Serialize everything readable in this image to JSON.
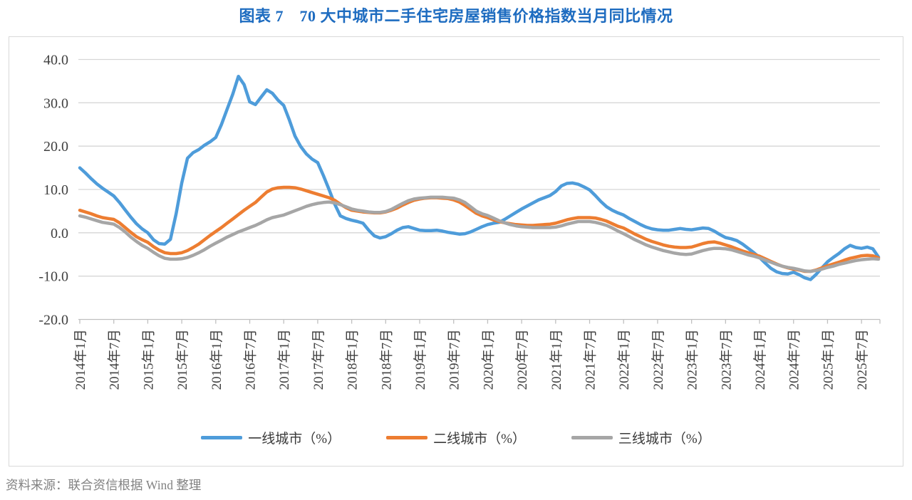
{
  "title": "图表 7　70 大中城市二手住宅房屋销售价格指数当月同比情况",
  "source_note": "资料来源：联合资信根据 Wind 整理",
  "chart_data": {
    "type": "line",
    "title": "图表 7　70 大中城市二手住宅房屋销售价格指数当月同比情况",
    "xlabel": "",
    "ylabel": "",
    "ylim": [
      -20.0,
      40.0
    ],
    "y_step": 10.0,
    "grid": true,
    "legend_position": "bottom",
    "x_monthly_range": {
      "start": "2014年1月",
      "end": "2025年10月"
    },
    "y_tick_labels": [
      "40.0",
      "30.0",
      "20.0",
      "10.0",
      "0.0",
      "-10.0",
      "-20.0"
    ],
    "x_tick_labels": [
      "2014年1月",
      "2014年7月",
      "2015年1月",
      "2015年7月",
      "2016年1月",
      "2016年7月",
      "2017年1月",
      "2017年7月",
      "2018年1月",
      "2018年7月",
      "2019年1月",
      "2019年7月",
      "2020年1月",
      "2020年7月",
      "2021年1月",
      "2021年7月",
      "2022年1月",
      "2022年7月",
      "2023年1月",
      "2023年7月",
      "2024年1月",
      "2024年7月",
      "2025年1月",
      "2025年7月"
    ],
    "series": [
      {
        "id": "first-tier",
        "name": "一线城市（%）",
        "color": "#4e9cda",
        "values": [
          15.0,
          13.8,
          12.5,
          11.3,
          10.3,
          9.4,
          8.5,
          7.0,
          5.3,
          3.6,
          2.1,
          0.9,
          0.0,
          -1.6,
          -2.5,
          -2.6,
          -1.5,
          4.4,
          11.5,
          17.2,
          18.5,
          19.2,
          20.2,
          21.0,
          22.0,
          25.0,
          28.5,
          32.0,
          36.1,
          34.2,
          30.2,
          29.6,
          31.3,
          33.0,
          32.2,
          30.6,
          29.4,
          26.0,
          22.3,
          19.9,
          18.2,
          17.0,
          16.2,
          13.2,
          10.0,
          6.6,
          3.9,
          3.3,
          2.9,
          2.6,
          2.2,
          0.6,
          -0.7,
          -1.2,
          -0.9,
          -0.2,
          0.6,
          1.2,
          1.4,
          1.0,
          0.6,
          0.5,
          0.5,
          0.6,
          0.4,
          0.1,
          -0.1,
          -0.3,
          -0.2,
          0.2,
          0.8,
          1.4,
          1.9,
          2.2,
          2.4,
          3.1,
          3.9,
          4.7,
          5.5,
          6.2,
          6.9,
          7.6,
          8.1,
          8.6,
          9.5,
          10.8,
          11.4,
          11.5,
          11.2,
          10.6,
          9.9,
          8.6,
          7.2,
          6.0,
          5.2,
          4.6,
          4.1,
          3.3,
          2.6,
          1.9,
          1.3,
          0.9,
          0.7,
          0.6,
          0.6,
          0.8,
          1.0,
          0.8,
          0.7,
          0.9,
          1.1,
          1.0,
          0.4,
          -0.4,
          -1.1,
          -1.4,
          -1.8,
          -2.6,
          -3.6,
          -4.6,
          -5.7,
          -7.0,
          -8.2,
          -9.0,
          -9.4,
          -9.5,
          -9.1,
          -9.7,
          -10.4,
          -10.8,
          -9.6,
          -8.1,
          -6.7,
          -5.7,
          -4.8,
          -3.7,
          -2.9,
          -3.4,
          -3.6,
          -3.3,
          -3.7,
          -5.6
        ]
      },
      {
        "id": "second-tier",
        "name": "二线城市（%）",
        "color": "#ed7d31",
        "values": [
          5.2,
          4.8,
          4.4,
          3.9,
          3.5,
          3.3,
          3.1,
          2.3,
          1.2,
          0.1,
          -0.9,
          -1.6,
          -2.2,
          -3.2,
          -4.0,
          -4.6,
          -4.8,
          -4.8,
          -4.6,
          -4.1,
          -3.4,
          -2.6,
          -1.6,
          -0.6,
          0.3,
          1.2,
          2.2,
          3.2,
          4.2,
          5.2,
          6.1,
          7.0,
          8.2,
          9.4,
          10.1,
          10.4,
          10.5,
          10.5,
          10.4,
          10.1,
          9.7,
          9.3,
          8.9,
          8.5,
          8.1,
          7.5,
          6.6,
          5.8,
          5.2,
          5.0,
          4.8,
          4.7,
          4.6,
          4.6,
          4.8,
          5.2,
          5.7,
          6.4,
          7.0,
          7.5,
          7.8,
          8.0,
          8.1,
          8.1,
          8.0,
          7.9,
          7.6,
          7.1,
          6.3,
          5.4,
          4.5,
          3.9,
          3.5,
          3.0,
          2.6,
          2.3,
          2.1,
          1.9,
          1.8,
          1.7,
          1.7,
          1.8,
          1.9,
          2.0,
          2.2,
          2.6,
          3.0,
          3.3,
          3.5,
          3.5,
          3.5,
          3.4,
          3.1,
          2.7,
          2.1,
          1.5,
          1.1,
          0.4,
          -0.3,
          -0.9,
          -1.5,
          -2.0,
          -2.4,
          -2.8,
          -3.1,
          -3.3,
          -3.4,
          -3.4,
          -3.3,
          -2.9,
          -2.5,
          -2.2,
          -2.1,
          -2.4,
          -2.8,
          -3.2,
          -3.7,
          -4.2,
          -4.6,
          -5.0,
          -5.4,
          -6.0,
          -6.6,
          -7.2,
          -7.7,
          -8.1,
          -8.4,
          -8.6,
          -8.9,
          -8.9,
          -8.6,
          -8.1,
          -7.6,
          -7.2,
          -6.8,
          -6.3,
          -5.9,
          -5.6,
          -5.3,
          -5.2,
          -5.3,
          -5.8
        ]
      },
      {
        "id": "third-tier",
        "name": "三线城市（%）",
        "color": "#a6a6a6",
        "values": [
          3.9,
          3.6,
          3.2,
          2.8,
          2.4,
          2.2,
          2.0,
          1.2,
          0.2,
          -1.0,
          -2.0,
          -2.9,
          -3.6,
          -4.5,
          -5.3,
          -5.9,
          -6.1,
          -6.1,
          -6.0,
          -5.7,
          -5.2,
          -4.6,
          -3.9,
          -3.1,
          -2.4,
          -1.7,
          -1.0,
          -0.4,
          0.2,
          0.7,
          1.2,
          1.7,
          2.3,
          3.0,
          3.5,
          3.8,
          4.1,
          4.6,
          5.1,
          5.6,
          6.1,
          6.5,
          6.8,
          7.0,
          7.1,
          6.9,
          6.5,
          6.0,
          5.5,
          5.2,
          5.0,
          4.8,
          4.7,
          4.7,
          4.9,
          5.4,
          6.1,
          6.8,
          7.4,
          7.8,
          8.0,
          8.1,
          8.2,
          8.2,
          8.2,
          8.1,
          8.0,
          7.6,
          7.0,
          6.0,
          5.0,
          4.4,
          4.0,
          3.4,
          2.8,
          2.3,
          1.9,
          1.6,
          1.4,
          1.3,
          1.2,
          1.2,
          1.2,
          1.2,
          1.3,
          1.6,
          2.0,
          2.3,
          2.6,
          2.6,
          2.6,
          2.4,
          2.1,
          1.7,
          1.1,
          0.4,
          -0.2,
          -0.9,
          -1.6,
          -2.2,
          -2.8,
          -3.3,
          -3.7,
          -4.1,
          -4.4,
          -4.7,
          -4.9,
          -5.0,
          -4.9,
          -4.5,
          -4.1,
          -3.8,
          -3.6,
          -3.6,
          -3.7,
          -3.9,
          -4.3,
          -4.7,
          -5.1,
          -5.4,
          -5.8,
          -6.3,
          -6.8,
          -7.3,
          -7.7,
          -8.0,
          -8.2,
          -8.5,
          -8.8,
          -8.9,
          -8.7,
          -8.4,
          -8.0,
          -7.7,
          -7.3,
          -7.0,
          -6.7,
          -6.4,
          -6.2,
          -6.1,
          -6.0,
          -6.1
        ]
      }
    ]
  },
  "legend": {
    "items": [
      "一线城市（%）",
      "二线城市（%）",
      "三线城市（%）"
    ]
  }
}
